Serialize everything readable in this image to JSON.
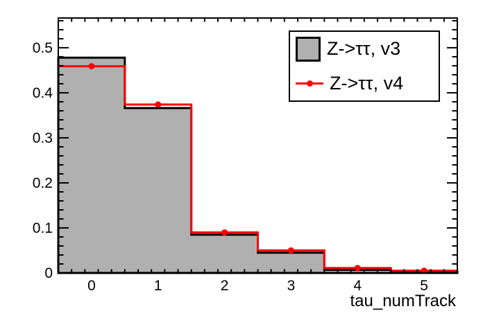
{
  "chart_data": {
    "type": "bar",
    "subtype": "step-histogram",
    "title": "",
    "xlabel": "tau_numTrack",
    "ylabel": "",
    "xlim": [
      -0.5,
      5.5
    ],
    "ylim": [
      0,
      0.566
    ],
    "grid": false,
    "legend_position": "top-right",
    "bin_edges": [
      -0.5,
      0.5,
      1.5,
      2.5,
      3.5,
      4.5,
      5.5
    ],
    "bin_centers": [
      0,
      1,
      2,
      3,
      4,
      5
    ],
    "x_major_ticks": [
      0,
      1,
      2,
      3,
      4,
      5
    ],
    "x_tick_labels": [
      "0",
      "1",
      "2",
      "3",
      "4",
      "5"
    ],
    "x_minor_step": 0.2,
    "y_major_ticks": [
      0,
      0.1,
      0.2,
      0.3,
      0.4,
      0.5
    ],
    "y_tick_labels": [
      "0",
      "0.1",
      "0.2",
      "0.3",
      "0.4",
      "0.5"
    ],
    "y_minor_step": 0.02,
    "series": [
      {
        "name": "Z->ττ, v3",
        "draw": "filled-step",
        "fill_color": "#b0b0b0",
        "line_color": "#000000",
        "values": [
          0.478,
          0.366,
          0.085,
          0.045,
          0.007,
          0.003
        ]
      },
      {
        "name": "Z->ττ, v4",
        "draw": "step-line-with-markers",
        "color": "#ff0000",
        "marker": "filled-circle",
        "values": [
          0.459,
          0.374,
          0.09,
          0.05,
          0.011,
          0.005
        ]
      }
    ],
    "legend": {
      "entries": [
        {
          "label": "Z->ττ, v3",
          "swatch": "gray-filled-box"
        },
        {
          "label": "Z->ττ, v4",
          "swatch": "red-line-with-circle-marker"
        }
      ]
    },
    "colors": {
      "fill_gray": "#b0b0b0",
      "line_red": "#ff0000",
      "axis_black": "#000000",
      "background": "#ffffff"
    }
  }
}
